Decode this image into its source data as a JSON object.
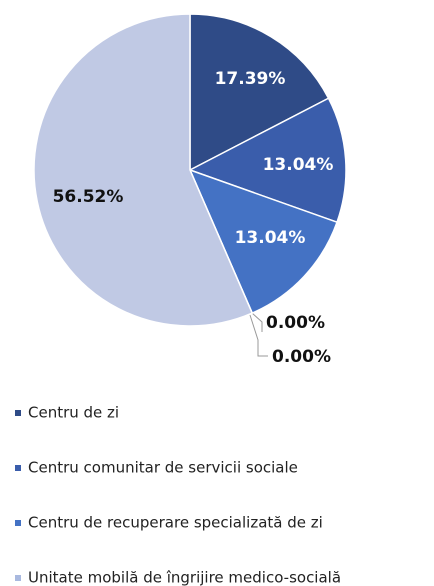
{
  "chart_data": {
    "type": "pie",
    "categories": [
      "Centru de zi",
      "Centru comunitar de servicii sociale",
      "Centru de recuperare specializată de zi",
      "Unitate mobilă de îngrijire medico-socială",
      null,
      null
    ],
    "values": [
      17.39,
      13.04,
      13.04,
      0,
      0,
      56.52
    ],
    "value_labels": [
      "17.39%",
      "13.04%",
      "13.04%",
      "0.00%",
      "0.00%",
      "56.52%"
    ],
    "colors": [
      "#2f4b87",
      "#3a5dab",
      "#4472c4",
      "#a9b9df",
      "#8ea6d6",
      "#c0c9e4"
    ]
  }
}
